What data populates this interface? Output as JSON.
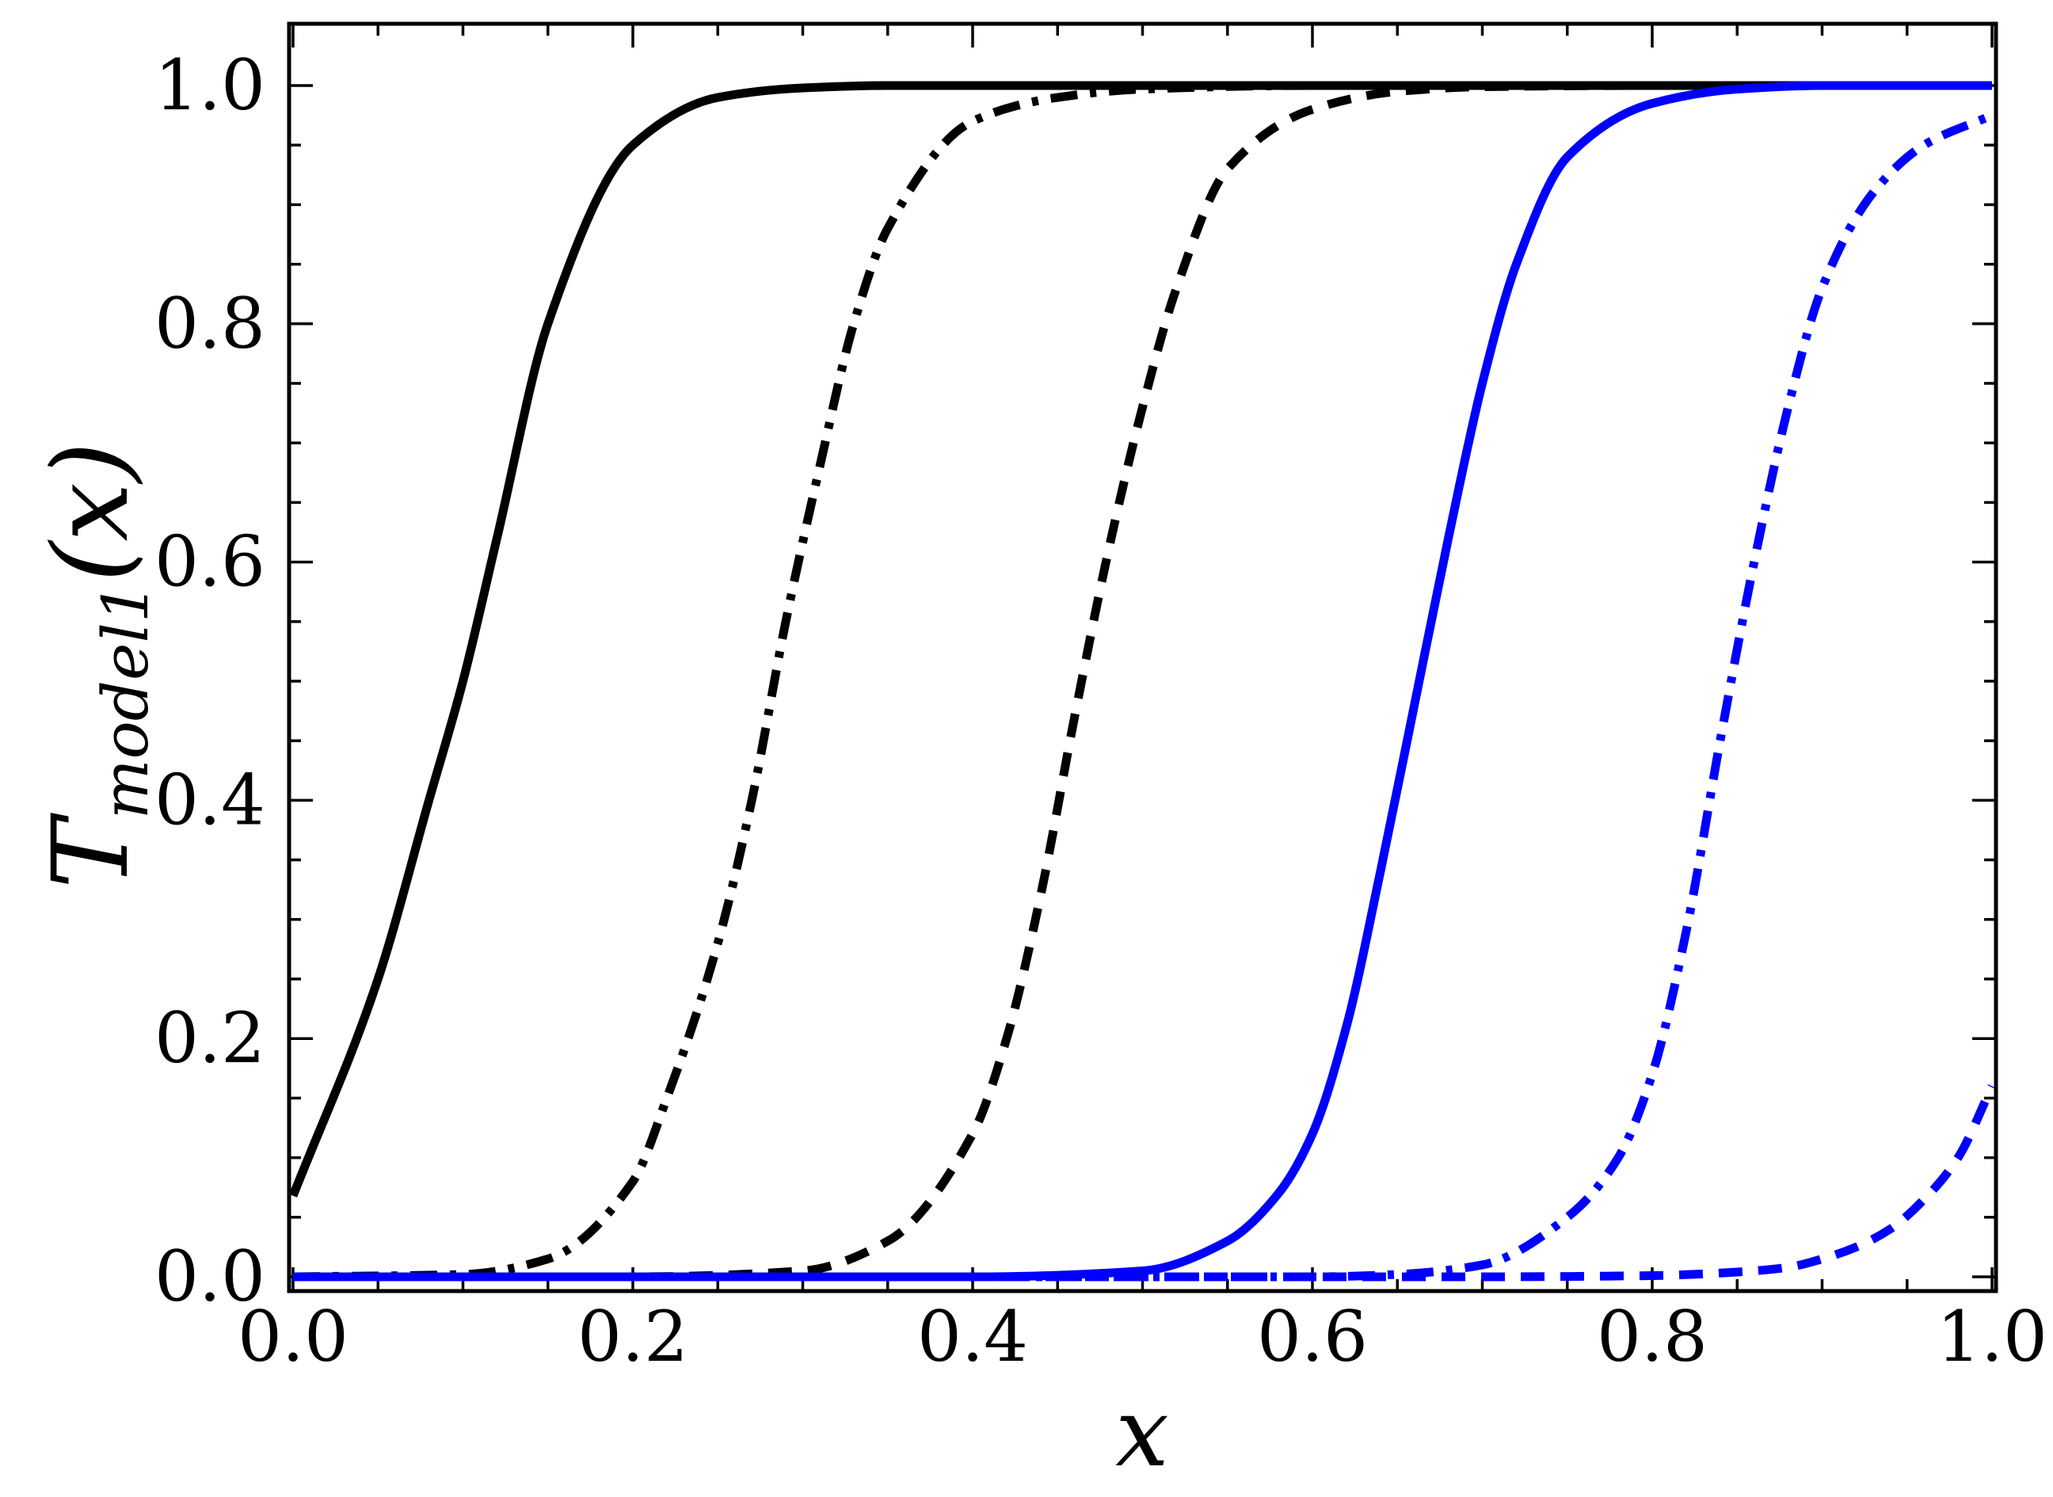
{
  "chart_data": {
    "type": "line",
    "title": "",
    "xlabel": "x",
    "ylabel": {
      "main": "T",
      "subscript": "model1",
      "suffix": "(x)"
    },
    "xlim": [
      0.0,
      1.0
    ],
    "ylim": [
      0.0,
      1.0
    ],
    "x_ticks": [
      "0.0",
      "0.2",
      "0.4",
      "0.6",
      "0.8",
      "1.0"
    ],
    "y_ticks": [
      "0.0",
      "0.2",
      "0.4",
      "0.6",
      "0.8",
      "1.0"
    ],
    "grid": false,
    "legend": "none",
    "series": [
      {
        "color": "#000000",
        "style": "solid",
        "x": [
          0.0,
          0.05,
          0.08,
          0.1,
          0.12,
          0.15,
          0.2,
          0.25,
          0.3,
          0.35,
          0.4,
          0.5,
          0.6,
          0.8,
          1.0
        ],
        "y": [
          0.068,
          0.25,
          0.4,
          0.5,
          0.62,
          0.8,
          0.95,
          0.99,
          0.998,
          1.0,
          1.0,
          1.0,
          1.0,
          1.0,
          1.0
        ]
      },
      {
        "color": "#000000",
        "style": "dashdot",
        "x": [
          0.0,
          0.1,
          0.15,
          0.2,
          0.22,
          0.25,
          0.27,
          0.29,
          0.31,
          0.33,
          0.35,
          0.4,
          0.45,
          0.5,
          0.6,
          0.8,
          1.0
        ],
        "y": [
          0.0,
          0.002,
          0.015,
          0.08,
          0.15,
          0.28,
          0.4,
          0.55,
          0.68,
          0.8,
          0.88,
          0.97,
          0.99,
          0.997,
          1.0,
          1.0,
          1.0
        ]
      },
      {
        "color": "#000000",
        "style": "dashed",
        "x": [
          0.0,
          0.2,
          0.3,
          0.35,
          0.4,
          0.42,
          0.44,
          0.46,
          0.48,
          0.5,
          0.52,
          0.55,
          0.6,
          0.65,
          0.7,
          0.8,
          1.0
        ],
        "y": [
          0.0,
          0.0,
          0.005,
          0.03,
          0.12,
          0.2,
          0.32,
          0.47,
          0.61,
          0.73,
          0.83,
          0.93,
          0.98,
          0.995,
          0.999,
          1.0,
          1.0
        ]
      },
      {
        "color": "#0000ff",
        "style": "solid",
        "x": [
          0.0,
          0.4,
          0.5,
          0.55,
          0.58,
          0.6,
          0.62,
          0.64,
          0.66,
          0.68,
          0.7,
          0.72,
          0.75,
          0.8,
          0.85,
          0.9,
          1.0
        ],
        "y": [
          0.0,
          0.0,
          0.005,
          0.03,
          0.07,
          0.12,
          0.21,
          0.34,
          0.48,
          0.62,
          0.75,
          0.85,
          0.94,
          0.985,
          0.997,
          1.0,
          1.0
        ]
      },
      {
        "color": "#0000ff",
        "style": "dashdot",
        "x": [
          0.0,
          0.6,
          0.65,
          0.7,
          0.75,
          0.78,
          0.8,
          0.82,
          0.84,
          0.86,
          0.88,
          0.9,
          0.93,
          0.96,
          1.0
        ],
        "y": [
          0.0,
          0.0,
          0.002,
          0.01,
          0.05,
          0.1,
          0.17,
          0.29,
          0.45,
          0.6,
          0.73,
          0.83,
          0.91,
          0.95,
          0.975
        ]
      },
      {
        "color": "#0000ff",
        "style": "dashed",
        "x": [
          0.0,
          0.7,
          0.8,
          0.85,
          0.88,
          0.9,
          0.92,
          0.94,
          0.96,
          0.98,
          1.0
        ],
        "y": [
          0.0,
          0.0,
          0.001,
          0.004,
          0.008,
          0.015,
          0.025,
          0.04,
          0.065,
          0.1,
          0.16
        ]
      }
    ]
  }
}
